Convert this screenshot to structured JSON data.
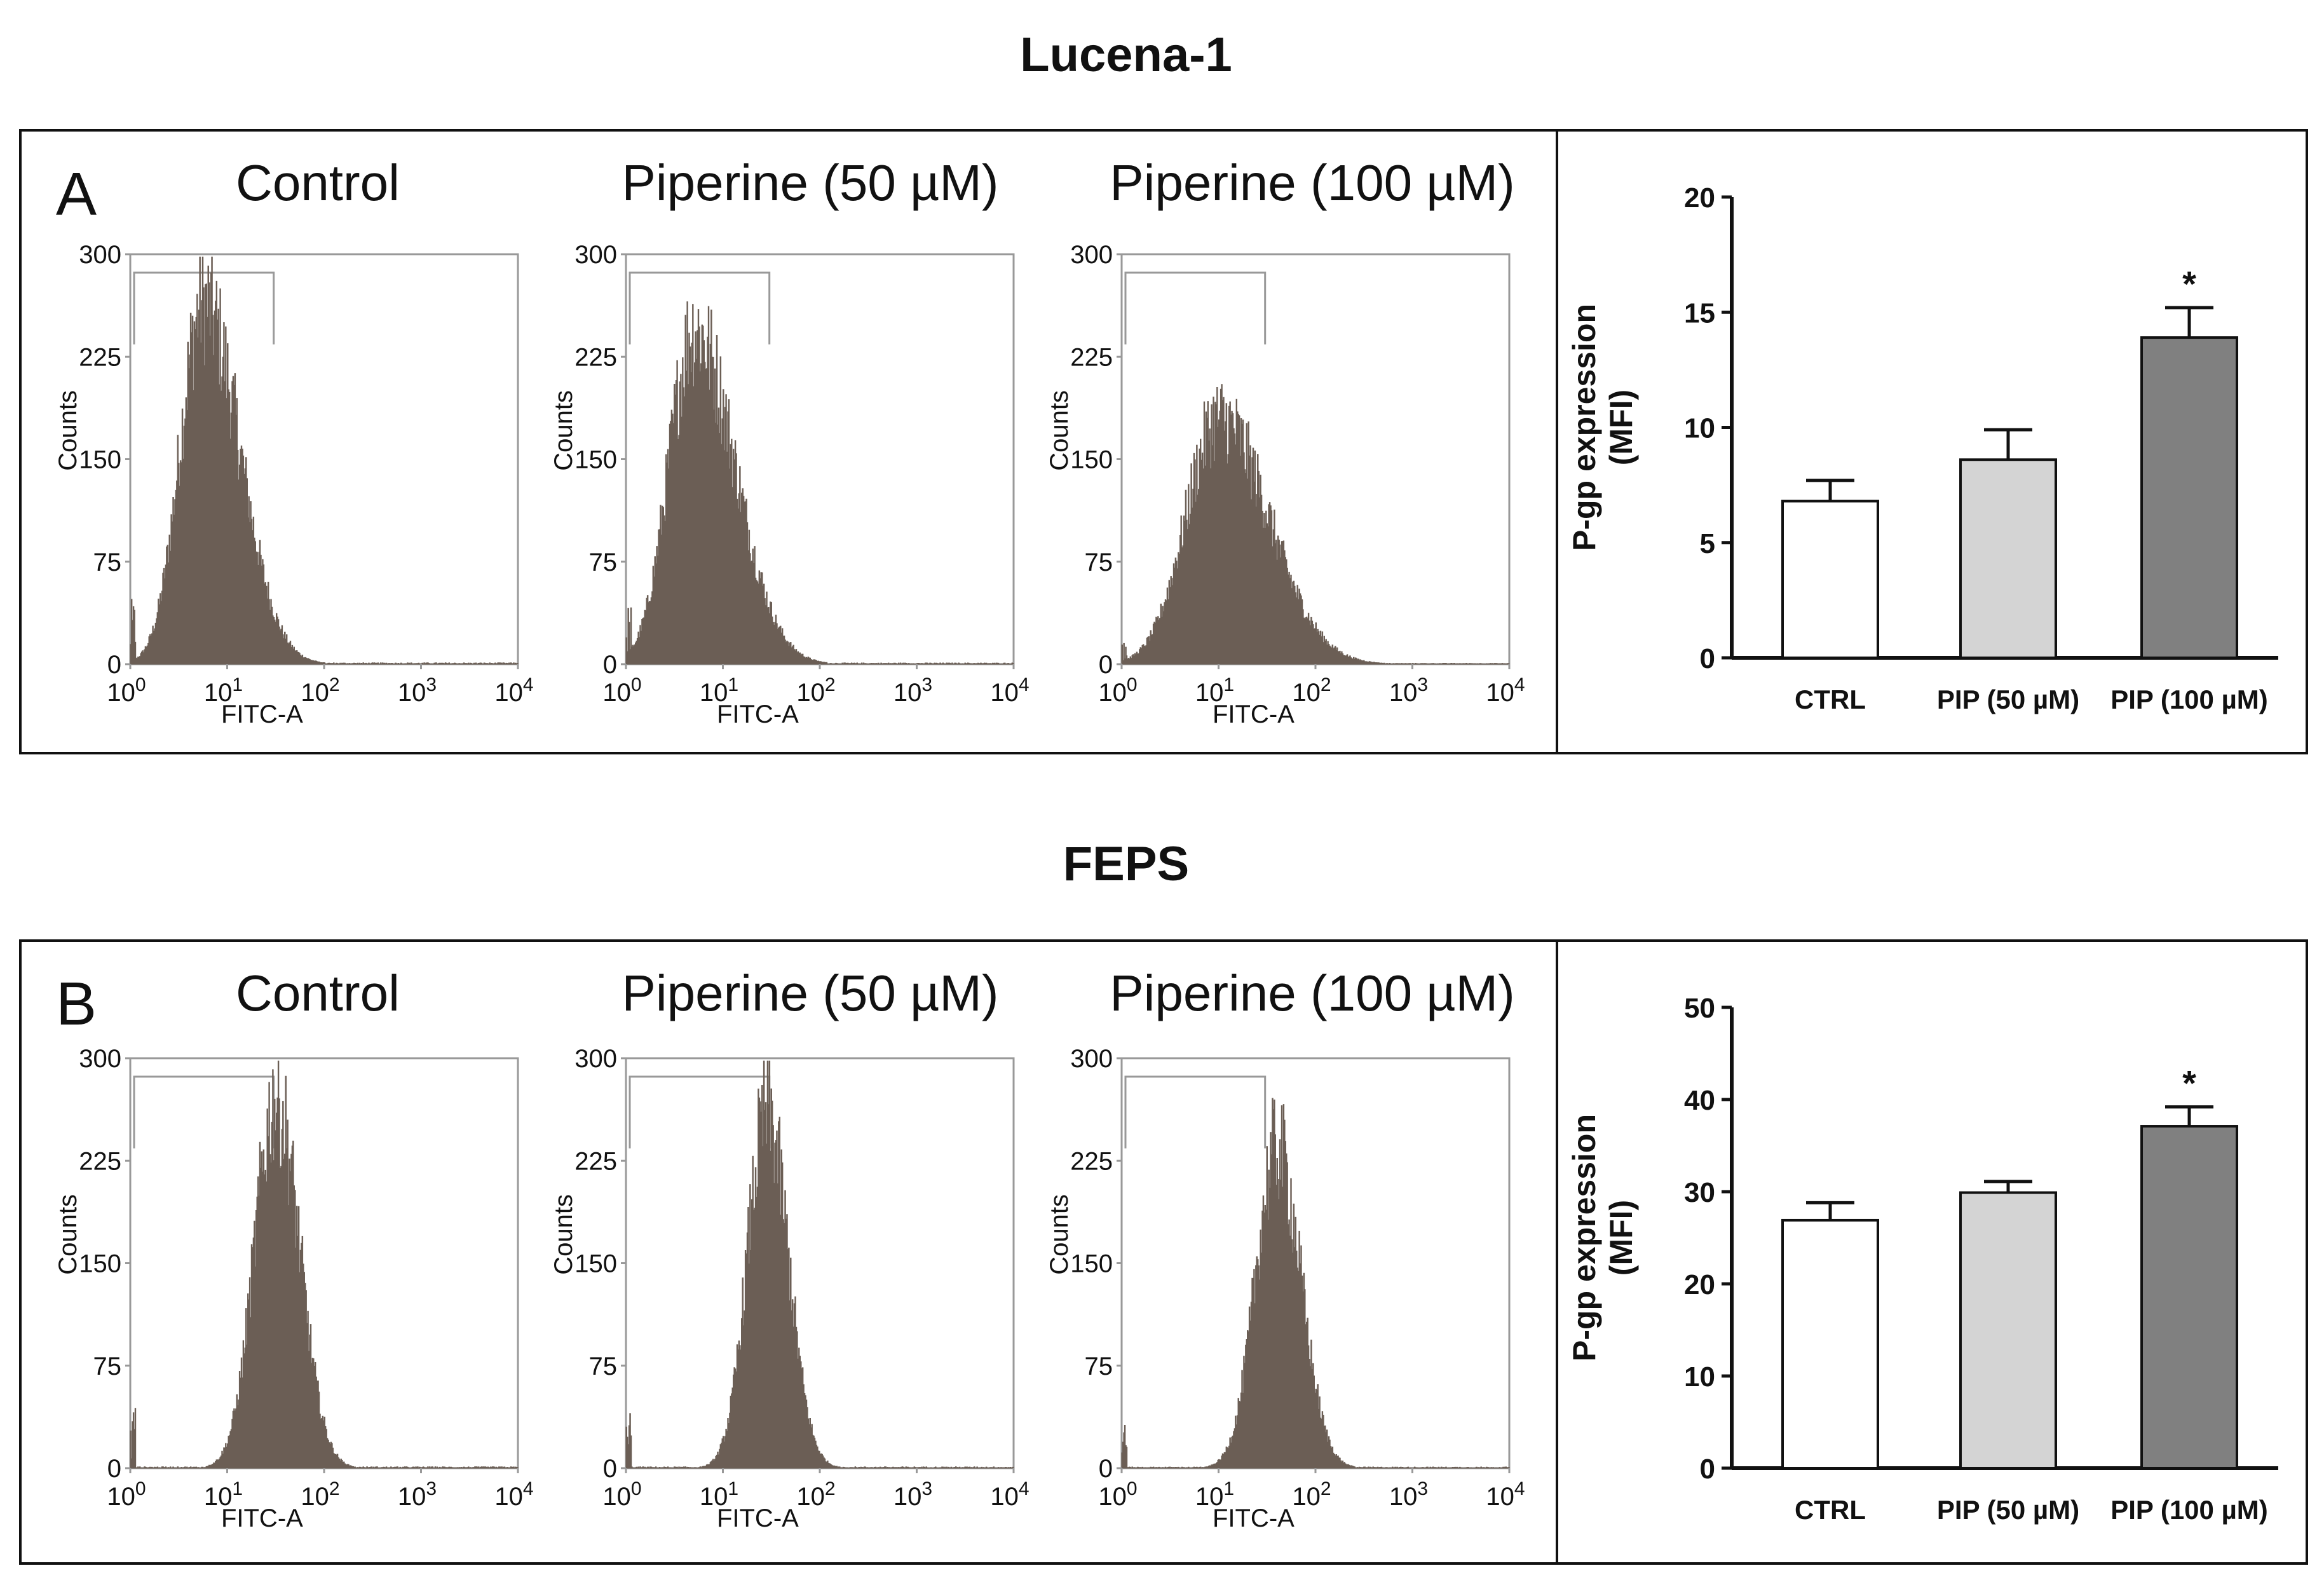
{
  "sections": [
    {
      "title": "Lucena-1",
      "letter": "A",
      "histograms": [
        {
          "title": "Control",
          "peak_log10": 0.75,
          "sigma": 0.24,
          "max_count": 265,
          "skew": 0.55
        },
        {
          "title": "Piperine (50 µM)",
          "peak_log10": 0.7,
          "sigma": 0.26,
          "max_count": 245,
          "skew": 0.6
        },
        {
          "title": "Piperine (100 µM)",
          "peak_log10": 1.0,
          "sigma": 0.34,
          "max_count": 180,
          "skew": 0.5
        }
      ],
      "bar": {
        "ylabel_line1": "P-gp expression",
        "ylabel_line2": "(MFI)",
        "categories": [
          "CTRL",
          "PIP (50 µM)",
          "PIP (100 µM)"
        ],
        "values": [
          6.8,
          8.6,
          13.9
        ],
        "errors": [
          0.9,
          1.3,
          1.3
        ],
        "ylim": [
          0,
          20
        ],
        "yticks": [
          "0",
          "5",
          "10",
          "15",
          "20"
        ],
        "significance": [
          "",
          "",
          "*"
        ],
        "colors": [
          "#ffffff",
          "#d4d4d4",
          "#808080"
        ]
      }
    },
    {
      "title": "FEPS",
      "letter": "B",
      "histograms": [
        {
          "title": "Control",
          "peak_log10": 1.5,
          "sigma": 0.22,
          "max_count": 270,
          "skew": 0.1
        },
        {
          "title": "Piperine (50 µM)",
          "peak_log10": 1.45,
          "sigma": 0.2,
          "max_count": 260,
          "skew": 0.1
        },
        {
          "title": "Piperine (100 µM)",
          "peak_log10": 1.6,
          "sigma": 0.22,
          "max_count": 235,
          "skew": 0.1
        }
      ],
      "bar": {
        "ylabel_line1": "P-gp expression",
        "ylabel_line2": "(MFI)",
        "categories": [
          "CTRL",
          "PIP (50 µM)",
          "PIP (100 µM)"
        ],
        "values": [
          26.9,
          29.9,
          37.1
        ],
        "errors": [
          1.9,
          1.2,
          2.1
        ],
        "ylim": [
          0,
          50
        ],
        "yticks": [
          "0",
          "10",
          "20",
          "30",
          "40",
          "50"
        ],
        "significance": [
          "",
          "",
          "*"
        ],
        "colors": [
          "#ffffff",
          "#d4d4d4",
          "#808080"
        ]
      }
    }
  ],
  "histogram_axes": {
    "ylabel": "Counts",
    "xlabel": "FITC-A",
    "yticks": [
      "0",
      "75",
      "150",
      "225",
      "300"
    ],
    "xtick_base": "10",
    "xtick_exps": [
      "0",
      "1",
      "2",
      "3",
      "4"
    ],
    "ylim": [
      0,
      300
    ],
    "xlim_log10": [
      0,
      4
    ],
    "fill_color": "#6b5e55"
  },
  "chart_data": [
    {
      "type": "bar",
      "title": "Lucena-1",
      "ylabel": "P-gp expression (MFI)",
      "categories": [
        "CTRL",
        "PIP (50 µM)",
        "PIP (100 µM)"
      ],
      "values": [
        6.8,
        8.6,
        13.9
      ],
      "errors": [
        0.9,
        1.3,
        1.3
      ],
      "ylim": [
        0,
        20
      ]
    },
    {
      "type": "bar",
      "title": "FEPS",
      "ylabel": "P-gp expression (MFI)",
      "categories": [
        "CTRL",
        "PIP (50 µM)",
        "PIP (100 µM)"
      ],
      "values": [
        26.9,
        29.9,
        37.1
      ],
      "errors": [
        1.9,
        1.2,
        2.1
      ],
      "ylim": [
        0,
        50
      ]
    }
  ]
}
